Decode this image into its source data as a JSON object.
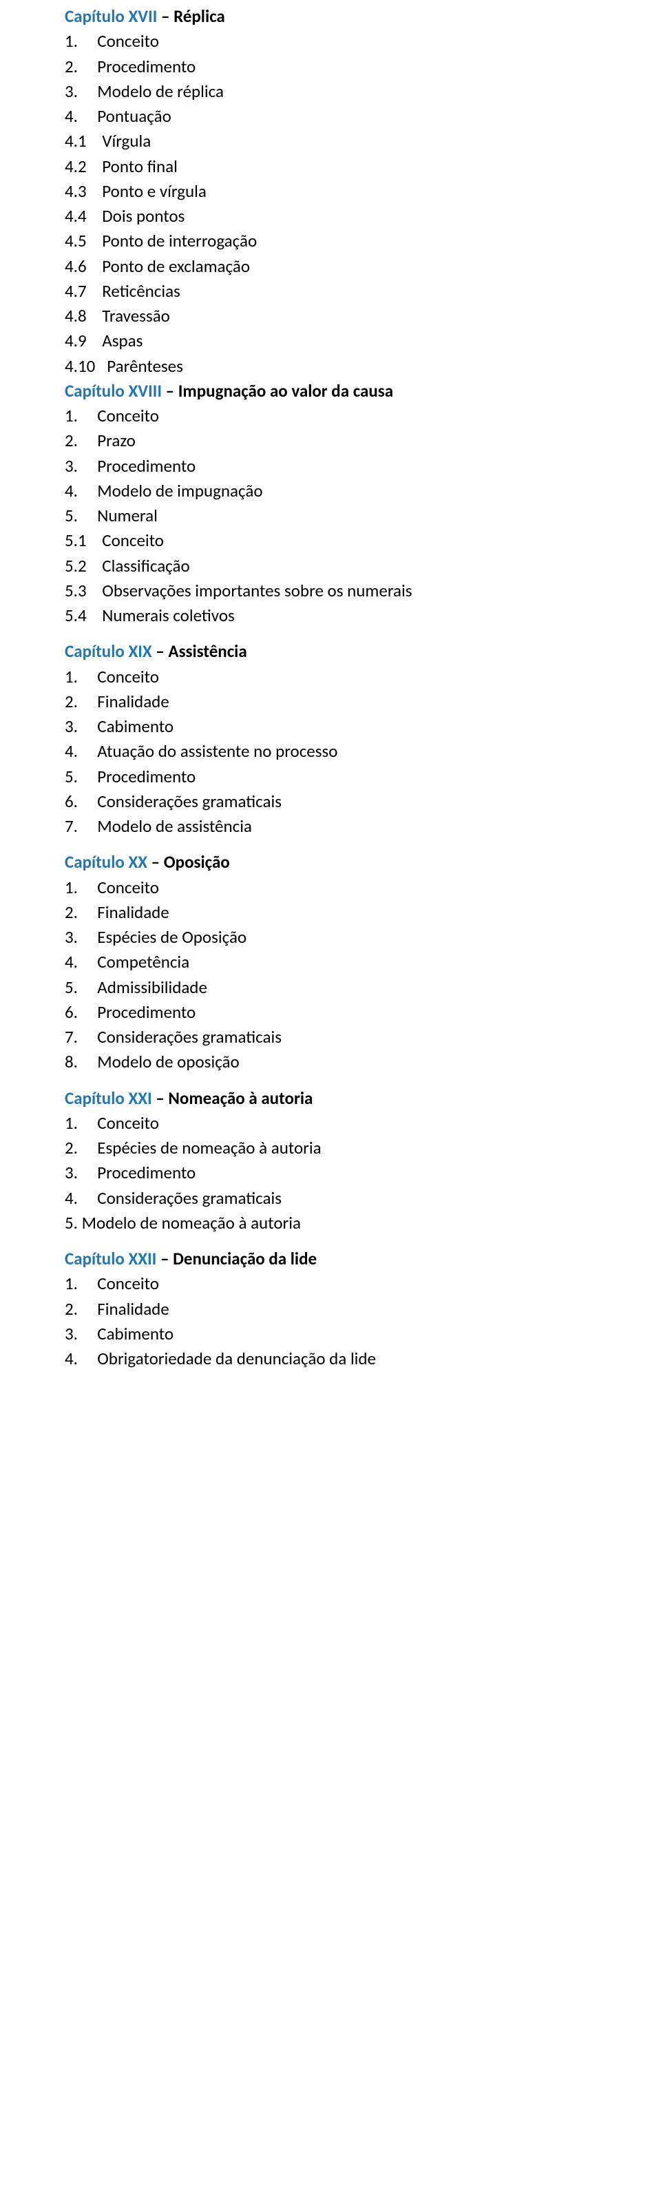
{
  "document": {
    "font_family": "Calibri",
    "body_font_size_pt": 19,
    "heading_color": "#1F77B4",
    "body_color": "#000000",
    "background_color": "#ffffff"
  },
  "chapters": [
    {
      "label": "Capítulo XVII",
      "title": "Réplica",
      "items": [
        {
          "num": "1.",
          "text": "Conceito"
        },
        {
          "num": "2.",
          "text": "Procedimento"
        },
        {
          "num": "3.",
          "text": "Modelo de réplica"
        },
        {
          "num": "4.",
          "text": "Pontuação"
        },
        {
          "num": "4.1",
          "text": "Vírgula"
        },
        {
          "num": "4.2",
          "text": "Ponto final"
        },
        {
          "num": "4.3",
          "text": "Ponto e vírgula"
        },
        {
          "num": "4.4",
          "text": "Dois pontos"
        },
        {
          "num": "4.5",
          "text": "Ponto de interrogação"
        },
        {
          "num": "4.6",
          "text": "Ponto de exclamação"
        },
        {
          "num": "4.7",
          "text": "Reticências"
        },
        {
          "num": "4.8",
          "text": "Travessão"
        },
        {
          "num": "4.9",
          "text": "Aspas"
        },
        {
          "num": "4.10",
          "text": "Parênteses"
        }
      ]
    },
    {
      "label": "Capítulo XVIII",
      "title": "Impugnação ao valor da causa",
      "items": [
        {
          "num": "1.",
          "text": "Conceito"
        },
        {
          "num": "2.",
          "text": "Prazo"
        },
        {
          "num": "3.",
          "text": "Procedimento"
        },
        {
          "num": "4.",
          "text": "Modelo de impugnação"
        },
        {
          "num": "5.",
          "text": "Numeral"
        },
        {
          "num": "5.1",
          "text": "Conceito"
        },
        {
          "num": "5.2",
          "text": "Classificação"
        },
        {
          "num": "5.3",
          "text": "Observações importantes sobre os numerais"
        },
        {
          "num": "5.4",
          "text": "Numerais coletivos"
        }
      ],
      "blank_after": true
    },
    {
      "label": "Capítulo XIX",
      "title": "Assistência",
      "items": [
        {
          "num": "1.",
          "text": "Conceito"
        },
        {
          "num": "2.",
          "text": "Finalidade"
        },
        {
          "num": "3.",
          "text": "Cabimento"
        },
        {
          "num": "4.",
          "text": "Atuação do assistente no processo"
        },
        {
          "num": "5.",
          "text": "Procedimento"
        },
        {
          "num": "6.",
          "text": "Considerações gramaticais"
        },
        {
          "num": "7.",
          "text": "Modelo de assistência"
        }
      ],
      "blank_after": true
    },
    {
      "label": "Capítulo XX",
      "title": "Oposição",
      "items": [
        {
          "num": "1.",
          "text": "Conceito"
        },
        {
          "num": "2.",
          "text": "Finalidade"
        },
        {
          "num": "3.",
          "text": "Espécies de Oposição"
        },
        {
          "num": "4.",
          "text": "Competência"
        },
        {
          "num": "5.",
          "text": "Admissibilidade"
        },
        {
          "num": "6.",
          "text": "Procedimento"
        },
        {
          "num": "7.",
          "text": "Considerações gramaticais"
        },
        {
          "num": "8.",
          "text": "Modelo de oposição"
        }
      ],
      "blank_after": true
    },
    {
      "label": "Capítulo XXI",
      "title": "Nomeação à autoria",
      "items": [
        {
          "num": "1.",
          "text": "Conceito"
        },
        {
          "num": "2.",
          "text": "Espécies de nomeação à autoria"
        },
        {
          "num": "3.",
          "text": "Procedimento"
        },
        {
          "num": "4.",
          "text": "Considerações gramaticais"
        },
        {
          "num": "5.",
          "text": "Modelo de nomeação à autoria",
          "no_pad": true
        }
      ],
      "blank_after": true
    },
    {
      "label": "Capítulo XXII",
      "title": "Denunciação da lide",
      "items": [
        {
          "num": "1.",
          "text": "Conceito"
        },
        {
          "num": "2.",
          "text": "Finalidade"
        },
        {
          "num": "3.",
          "text": "Cabimento"
        },
        {
          "num": "4.",
          "text": "Obrigatoriedade da denunciação da lide"
        }
      ]
    }
  ]
}
